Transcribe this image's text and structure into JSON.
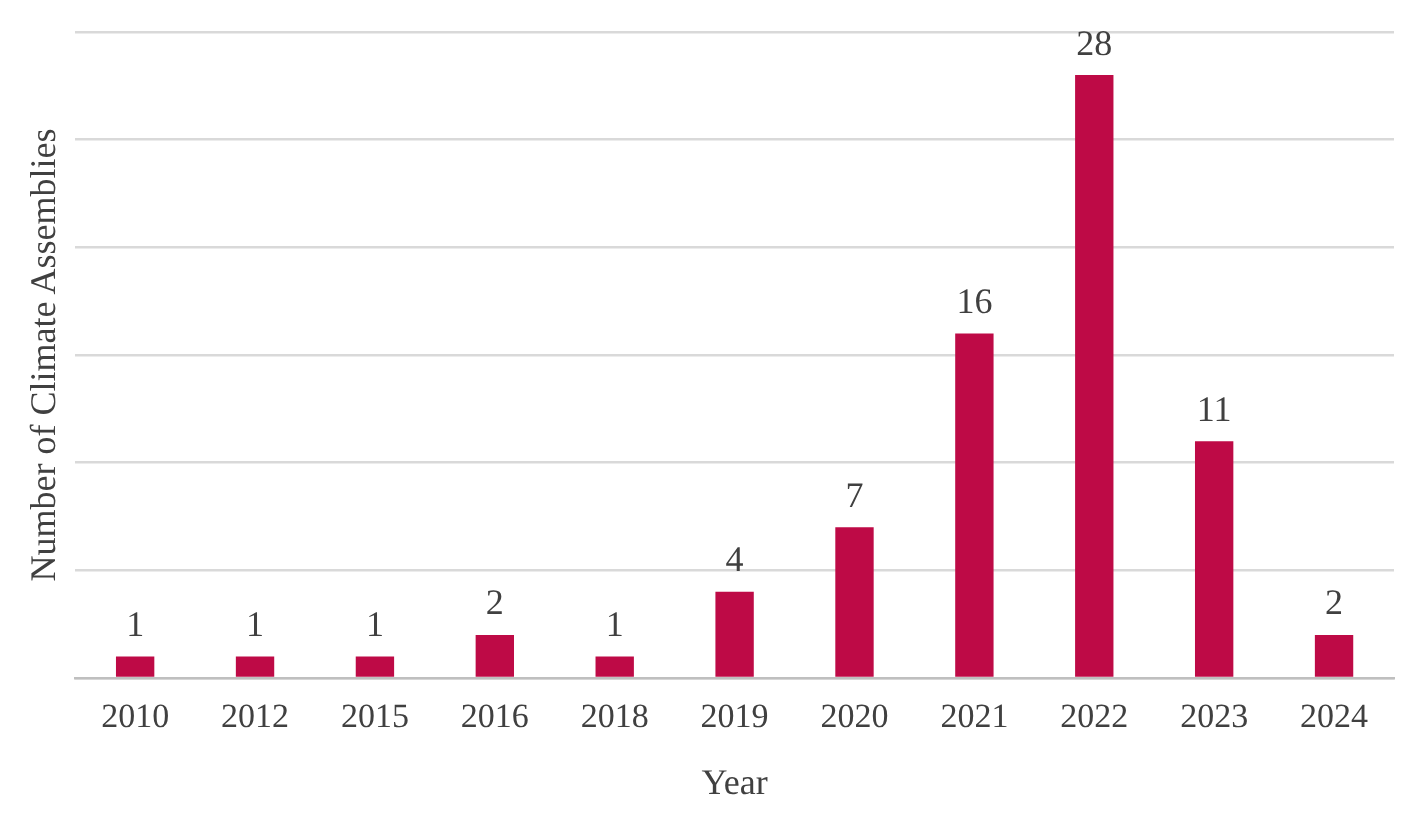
{
  "chart_data": {
    "type": "bar",
    "xlabel": "Year",
    "ylabel": "Number of Climate Assemblies",
    "categories": [
      "2010",
      "2012",
      "2015",
      "2016",
      "2018",
      "2019",
      "2020",
      "2021",
      "2022",
      "2023",
      "2024"
    ],
    "values": [
      1,
      1,
      1,
      2,
      1,
      4,
      7,
      16,
      28,
      11,
      2
    ],
    "color": "#be0a46",
    "ylim": [
      0,
      30
    ],
    "yticks": [
      {
        "value": 0,
        "label": null
      },
      {
        "value": 5,
        "label": null
      },
      {
        "value": 10,
        "label": null
      },
      {
        "value": 15,
        "label": null
      },
      {
        "value": 20,
        "label": null
      },
      {
        "value": 25,
        "label": null
      },
      {
        "value": 30,
        "label": null
      }
    ],
    "grid": "y",
    "tick_labels": "x",
    "data_labels": true,
    "legend": false
  }
}
